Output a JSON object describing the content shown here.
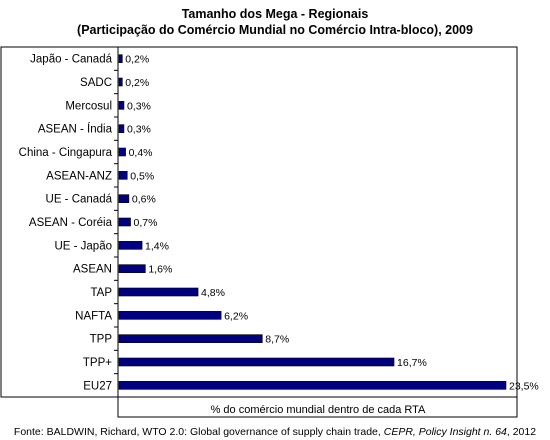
{
  "chart_data": {
    "type": "bar",
    "orientation": "horizontal",
    "title": "Tamanho dos Mega - Regionais",
    "subtitle": "(Participação do Comércio Mundial no Comércio Intra-bloco), 2009",
    "xlabel": "% do comércio mundial dentro de cada RTA",
    "ylabel": "",
    "categories": [
      "Japão - Canadá",
      "SADC",
      "Mercosul",
      "ASEAN - Índia",
      "China - Cingapura",
      "ASEAN-ANZ",
      "UE - Canadá",
      "ASEAN - Coréia",
      "UE - Japão",
      "ASEAN",
      "TAP",
      "NAFTA",
      "TPP",
      "TPP+",
      "EU27"
    ],
    "values": [
      0.2,
      0.2,
      0.3,
      0.3,
      0.4,
      0.5,
      0.6,
      0.7,
      1.4,
      1.6,
      4.8,
      6.2,
      8.7,
      16.7,
      23.5
    ],
    "data_labels": [
      "0,2%",
      "0,2%",
      "0,3%",
      "0,3%",
      "0,4%",
      "0,5%",
      "0,6%",
      "0,7%",
      "1,4%",
      "1,6%",
      "4,8%",
      "6,2%",
      "8,7%",
      "16,7%",
      "23,5%"
    ],
    "xlim": [
      0,
      23.5
    ],
    "bar_color": "#000080",
    "grid": false,
    "legend": "none"
  },
  "footer": {
    "text_plain": "Fonte: BALDWIN, Richard, WTO 2.0: Global governance of supply chain trade, ",
    "text_italic": "CEPR, Policy Insight n. 64",
    "text_end": ", 2012"
  }
}
